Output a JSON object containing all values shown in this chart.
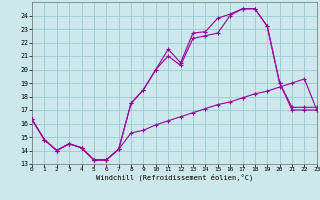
{
  "xlabel": "Windchill (Refroidissement éolien,°C)",
  "background_color": "#cce8ec",
  "grid_color": "#9cc8d0",
  "line_color": "#990099",
  "xlim": [
    0,
    23
  ],
  "ylim": [
    13,
    25
  ],
  "yticks": [
    13,
    14,
    15,
    16,
    17,
    18,
    19,
    20,
    21,
    22,
    23,
    24
  ],
  "xticks": [
    0,
    1,
    2,
    3,
    4,
    5,
    6,
    7,
    8,
    9,
    10,
    11,
    12,
    13,
    14,
    15,
    16,
    17,
    18,
    19,
    20,
    21,
    22,
    23
  ],
  "s1_x": [
    0,
    1,
    2,
    3,
    4,
    5,
    6,
    7,
    8,
    9,
    10,
    11,
    12,
    13,
    14,
    15,
    16,
    17,
    18,
    19,
    20,
    21,
    22,
    23
  ],
  "s1_y": [
    16.3,
    14.8,
    14.0,
    14.5,
    14.2,
    13.3,
    13.3,
    14.1,
    15.3,
    15.5,
    15.9,
    16.2,
    16.5,
    16.8,
    17.1,
    17.4,
    17.6,
    17.9,
    18.2,
    18.4,
    18.7,
    19.0,
    19.3,
    17.0
  ],
  "s2_x": [
    0,
    1,
    2,
    3,
    4,
    5,
    6,
    7,
    8,
    9,
    10,
    11,
    12,
    13,
    14,
    15,
    16,
    17,
    18,
    19,
    20,
    21,
    22,
    23
  ],
  "s2_y": [
    16.3,
    14.8,
    14.0,
    14.5,
    14.2,
    13.3,
    13.3,
    14.1,
    17.5,
    18.5,
    20.0,
    21.0,
    20.3,
    22.3,
    22.5,
    22.7,
    24.0,
    24.5,
    24.5,
    23.2,
    19.0,
    17.0,
    17.0,
    17.0
  ],
  "s3_x": [
    0,
    1,
    2,
    3,
    4,
    5,
    6,
    7,
    8,
    9,
    10,
    11,
    12,
    13,
    14,
    15,
    16,
    17,
    18,
    19,
    20,
    21,
    22,
    23
  ],
  "s3_y": [
    16.3,
    14.8,
    14.0,
    14.5,
    14.2,
    13.3,
    13.3,
    14.1,
    17.5,
    18.5,
    20.0,
    21.5,
    20.5,
    22.7,
    22.8,
    23.8,
    24.1,
    24.5,
    24.5,
    23.2,
    19.0,
    17.2,
    17.2,
    17.2
  ]
}
